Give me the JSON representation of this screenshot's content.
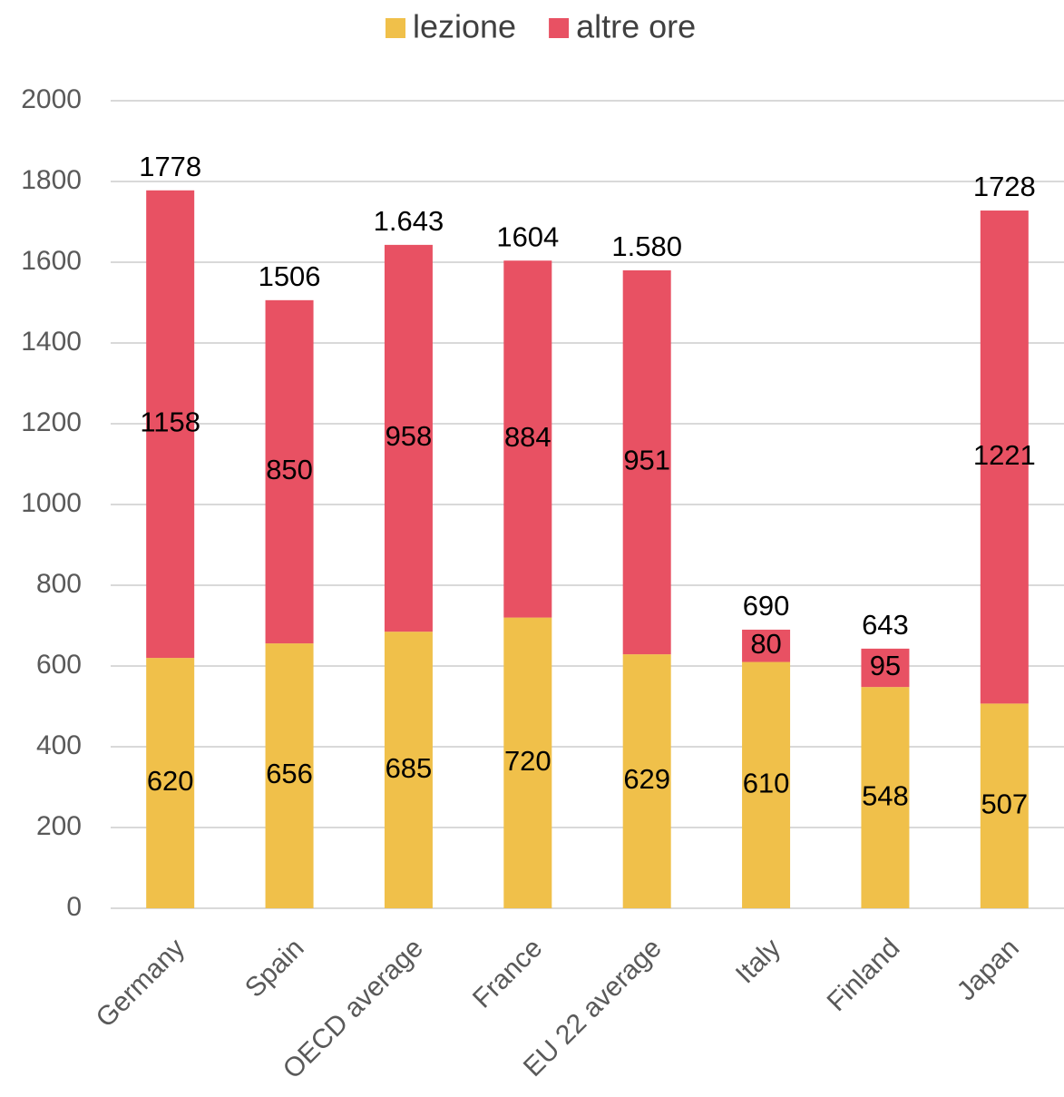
{
  "chart_data": {
    "type": "stacked_bar",
    "categories": [
      "Germany",
      "Spain",
      "OECD average",
      "France",
      "EU 22 average",
      "Italy",
      "Finland",
      "Japan"
    ],
    "series": [
      {
        "name": "lezione",
        "color": "#f0c04a",
        "values": [
          620,
          656,
          685,
          720,
          629,
          610,
          548,
          507
        ]
      },
      {
        "name": "altre ore",
        "color": "#e85163",
        "values": [
          1158,
          850,
          958,
          884,
          951,
          80,
          95,
          1221
        ]
      }
    ],
    "totals": {
      "values": [
        1778,
        1506,
        1643,
        1604,
        1580,
        690,
        643,
        1728
      ],
      "value_labels": [
        "1778",
        "1506",
        "1.643",
        "1604",
        "1.580",
        "690",
        "643",
        "1728"
      ]
    },
    "ylim": [
      0,
      2000
    ],
    "yticks": [
      0,
      200,
      400,
      600,
      800,
      1000,
      1200,
      1400,
      1600,
      1800,
      2000
    ],
    "grid": true,
    "legend": "top"
  }
}
